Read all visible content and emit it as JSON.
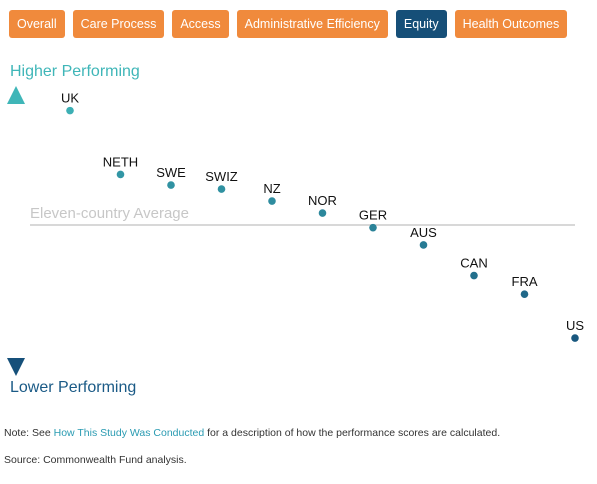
{
  "tabs": [
    {
      "label": "Overall",
      "active": false
    },
    {
      "label": "Care Process",
      "active": false
    },
    {
      "label": "Access",
      "active": false
    },
    {
      "label": "Administrative Efficiency",
      "active": false
    },
    {
      "label": "Equity",
      "active": true
    },
    {
      "label": "Health Outcomes",
      "active": false
    }
  ],
  "colors": {
    "tab_inactive": "#f08a3c",
    "tab_active": "#164f78",
    "arrow_top": "#3fb6b8",
    "arrow_bottom": "#16507a",
    "average_line": "#cccccc",
    "average_text": "#c7c7c7"
  },
  "axis": {
    "higher_label": "Higher Performing",
    "lower_label": "Lower Performing"
  },
  "chart_data": {
    "type": "scatter",
    "y_meaning": "relative performance score (higher is better)",
    "ylim": [
      -1.0,
      1.0
    ],
    "average": {
      "label": "Eleven-country Average",
      "value": 0.0
    },
    "points": [
      {
        "label": "UK",
        "value": 0.86
      },
      {
        "label": "NETH",
        "value": 0.38
      },
      {
        "label": "SWE",
        "value": 0.3
      },
      {
        "label": "SWIZ",
        "value": 0.27
      },
      {
        "label": "NZ",
        "value": 0.18
      },
      {
        "label": "NOR",
        "value": 0.09
      },
      {
        "label": "GER",
        "value": -0.02
      },
      {
        "label": "AUS",
        "value": -0.15
      },
      {
        "label": "CAN",
        "value": -0.38
      },
      {
        "label": "FRA",
        "value": -0.52
      },
      {
        "label": "US",
        "value": -0.85
      }
    ]
  },
  "footer": {
    "note_prefix": "Note: See ",
    "note_link": "How This Study Was Conducted",
    "note_suffix": " for a description of how the performance scores are calculated.",
    "source": "Source: Commonwealth Fund analysis."
  }
}
